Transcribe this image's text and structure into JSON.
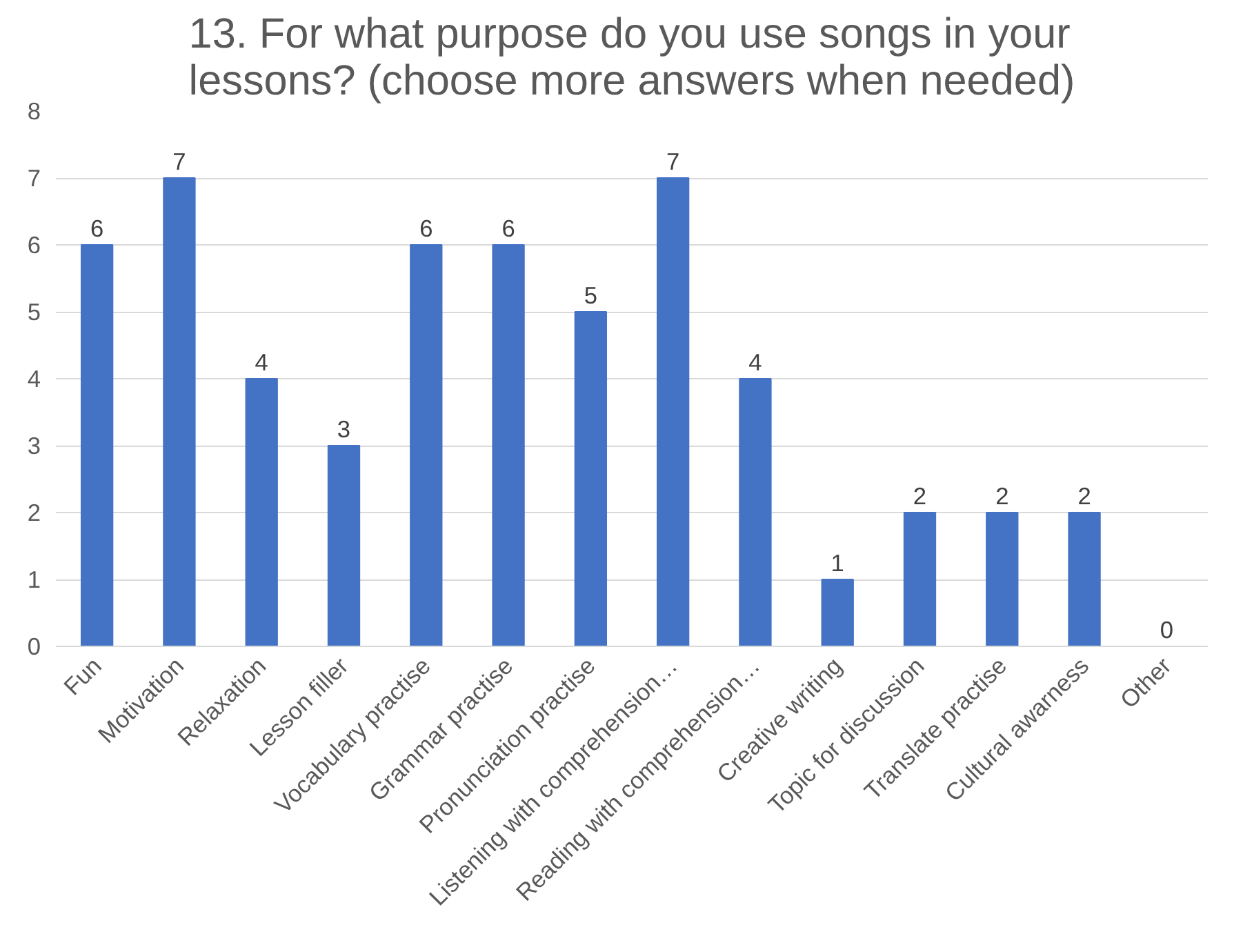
{
  "chart_data": {
    "type": "bar",
    "title": "13. For what purpose do you use songs in your lessons? (choose more answers when needed)",
    "categories": [
      "Fun",
      "Motivation",
      "Relaxation",
      "Lesson filler",
      "Vocabulary practise",
      "Grammar practise",
      "Pronunciation practise",
      "Listening with comprehension…",
      "Reading with comprehension…",
      "Creative writing",
      "Topic for discussion",
      "Translate practise",
      "Cultural awarness",
      "Other"
    ],
    "values": [
      6,
      7,
      4,
      3,
      6,
      6,
      5,
      7,
      4,
      1,
      2,
      2,
      2,
      0
    ],
    "color": "#4472c4",
    "ylim": [
      0,
      8
    ],
    "yticks": [
      0,
      1,
      2,
      3,
      4,
      5,
      6,
      7,
      8
    ],
    "grid": "y",
    "data_labels": true
  }
}
